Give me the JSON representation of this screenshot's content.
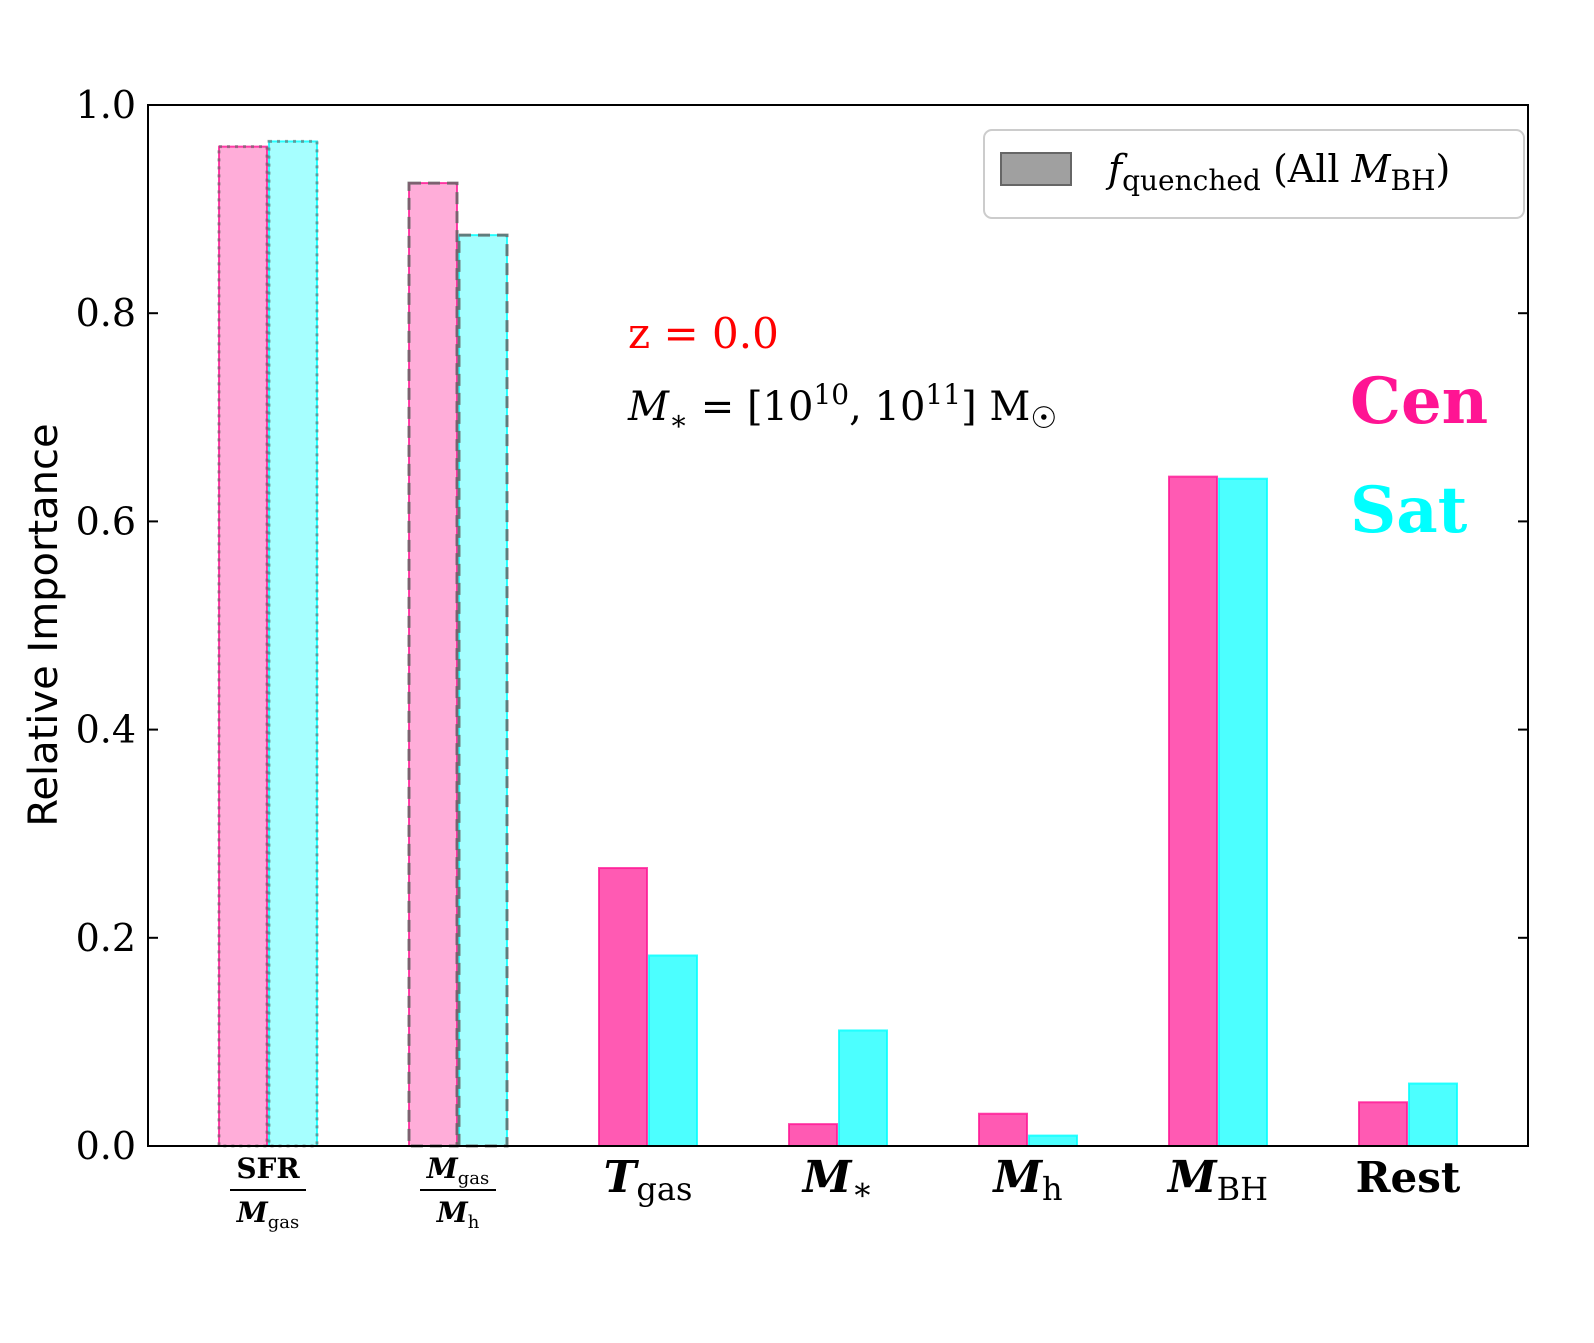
{
  "chart_data": {
    "type": "bar",
    "title": "",
    "xlabel": "",
    "ylabel": "Relative Importance",
    "ylim": [
      0.0,
      1.0
    ],
    "yticks": [
      "0.0",
      "0.2",
      "0.4",
      "0.6",
      "0.8",
      "1.0"
    ],
    "categories": [
      {
        "main": "SFR",
        "den": "M",
        "den_sub": "gas",
        "kind": "fraction"
      },
      {
        "main": "M",
        "main_sub": "gas",
        "den": "M",
        "den_sub": "h",
        "kind": "fraction"
      },
      {
        "main": "T",
        "sub": "gas",
        "kind": "symbol"
      },
      {
        "main": "M",
        "sub": "∗",
        "kind": "symbol"
      },
      {
        "main": "M",
        "sub": "h",
        "kind": "symbol"
      },
      {
        "main": "M",
        "sub": "BH",
        "kind": "symbol"
      },
      {
        "main": "Rest",
        "kind": "text"
      }
    ],
    "series": [
      {
        "name": "Cen",
        "color": "#ff1493",
        "values": [
          0.96,
          0.925,
          0.267,
          0.021,
          0.031,
          0.643,
          0.042
        ]
      },
      {
        "name": "Sat",
        "color": "#00ffff",
        "values": [
          0.965,
          0.875,
          0.183,
          0.111,
          0.01,
          0.641,
          0.06
        ]
      }
    ],
    "outline_styles": [
      "dotted",
      "dashed",
      "none",
      "none",
      "none",
      "none",
      "none"
    ],
    "faded": [
      true,
      true,
      false,
      false,
      false,
      false,
      false
    ],
    "legend": {
      "position": "top-right",
      "label_f": "f",
      "label_f_sub": "quenched",
      "label_open": " (All ",
      "label_m": "M",
      "label_m_sub": "BH",
      "label_close": ")"
    },
    "annotations": {
      "redshift": "z = 0.0",
      "redshift_color": "#ff0000",
      "mass_lhs": "M",
      "mass_lhs_sub": "∗",
      "mass_eq": " = [10",
      "mass_exp1": "10",
      "mass_mid": ", 10",
      "mass_exp2": "11",
      "mass_close": "] M",
      "mass_sun": "☉",
      "cen_label": "Cen",
      "sat_label": "Sat"
    }
  }
}
